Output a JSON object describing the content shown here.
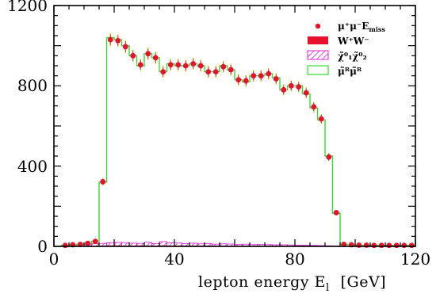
{
  "chart_data": {
    "type": "bar",
    "xlabel": "lepton energy E",
    "xlabel_sub": "l",
    "xunit": "[GeV]",
    "ylabel": "",
    "xlim": [
      0,
      120
    ],
    "ylim": [
      0,
      1200
    ],
    "x_ticks": [
      "0",
      "40",
      "80",
      "120"
    ],
    "y_ticks": [
      "0",
      "400",
      "800",
      "1200"
    ],
    "grid": false,
    "legend_position": "top-right",
    "legend": [
      {
        "key": "signal",
        "label": "μ⁺μ⁻E",
        "label_sub": "miss",
        "marker": "red-dot-with-error-bar"
      },
      {
        "key": "ww",
        "label": "W⁺W⁻",
        "marker": "red-filled-box"
      },
      {
        "key": "neutralino",
        "label": "χ̃⁰₁χ̃⁰₂",
        "marker": "magenta-hatched-box"
      },
      {
        "key": "smuon",
        "label": "μ̃ᴿμ̃ᴿ",
        "marker": "green-open-box"
      }
    ],
    "bin_width": 2.5,
    "x": [
      3.75,
      6.25,
      8.75,
      11.25,
      13.75,
      16.25,
      18.75,
      21.25,
      23.75,
      26.25,
      28.75,
      31.25,
      33.75,
      36.25,
      38.75,
      41.25,
      43.75,
      46.25,
      48.75,
      51.25,
      53.75,
      56.25,
      58.75,
      61.25,
      63.75,
      66.25,
      68.75,
      71.25,
      73.75,
      76.25,
      78.75,
      81.25,
      83.75,
      86.25,
      88.75,
      91.25,
      93.75,
      96.25,
      98.75,
      101.25,
      103.75,
      106.25,
      108.75,
      111.25,
      113.75,
      116.25,
      118.75
    ],
    "series": [
      {
        "key": "smuon",
        "color": "#33dd33",
        "style": "step",
        "values": [
          5,
          8,
          10,
          15,
          25,
          320,
          1040,
          1030,
          1000,
          950,
          900,
          960,
          940,
          870,
          910,
          900,
          900,
          910,
          900,
          870,
          870,
          900,
          880,
          830,
          820,
          850,
          850,
          860,
          840,
          780,
          800,
          800,
          760,
          690,
          630,
          450,
          165,
          10,
          8,
          6,
          6,
          5,
          5,
          5,
          5,
          5,
          5
        ]
      },
      {
        "key": "signal",
        "color": "#e8112d",
        "error_color": "#c8c800",
        "style": "points",
        "values": [
          5,
          8,
          10,
          15,
          25,
          322,
          1030,
          1025,
          995,
          950,
          905,
          960,
          940,
          870,
          905,
          905,
          900,
          910,
          900,
          870,
          870,
          895,
          880,
          830,
          825,
          850,
          850,
          860,
          835,
          780,
          800,
          795,
          765,
          695,
          635,
          445,
          168,
          10,
          8,
          6,
          6,
          5,
          5,
          5,
          5,
          5,
          5
        ],
        "errors": [
          3,
          3,
          3,
          4,
          5,
          18,
          32,
          32,
          32,
          31,
          30,
          31,
          31,
          30,
          30,
          30,
          30,
          30,
          30,
          30,
          30,
          30,
          30,
          29,
          29,
          29,
          29,
          29,
          29,
          28,
          28,
          28,
          28,
          26,
          25,
          21,
          13,
          3,
          3,
          3,
          3,
          2,
          2,
          2,
          2,
          2,
          2
        ]
      },
      {
        "key": "neutralino",
        "color": "#dd22dd",
        "style": "hatched",
        "values": [
          4,
          6,
          9,
          11,
          14,
          15,
          18,
          20,
          17,
          16,
          15,
          20,
          14,
          24,
          18,
          17,
          14,
          16,
          13,
          14,
          11,
          13,
          12,
          10,
          11,
          9,
          10,
          9,
          8,
          8,
          7,
          6,
          6,
          5,
          4,
          3,
          2,
          0,
          0,
          0,
          0,
          0,
          0,
          0,
          0,
          0,
          0
        ]
      },
      {
        "key": "ww",
        "color": "#e8112d",
        "style": "filled",
        "values": [
          2,
          2,
          3,
          3,
          3,
          4,
          5,
          5,
          4,
          4,
          5,
          4,
          4,
          5,
          4,
          4,
          4,
          4,
          4,
          4,
          3,
          3,
          3,
          3,
          3,
          3,
          3,
          3,
          3,
          3,
          3,
          3,
          3,
          3,
          3,
          3,
          2,
          2,
          2,
          2,
          2,
          2,
          2,
          2,
          2,
          2,
          2
        ]
      }
    ]
  }
}
